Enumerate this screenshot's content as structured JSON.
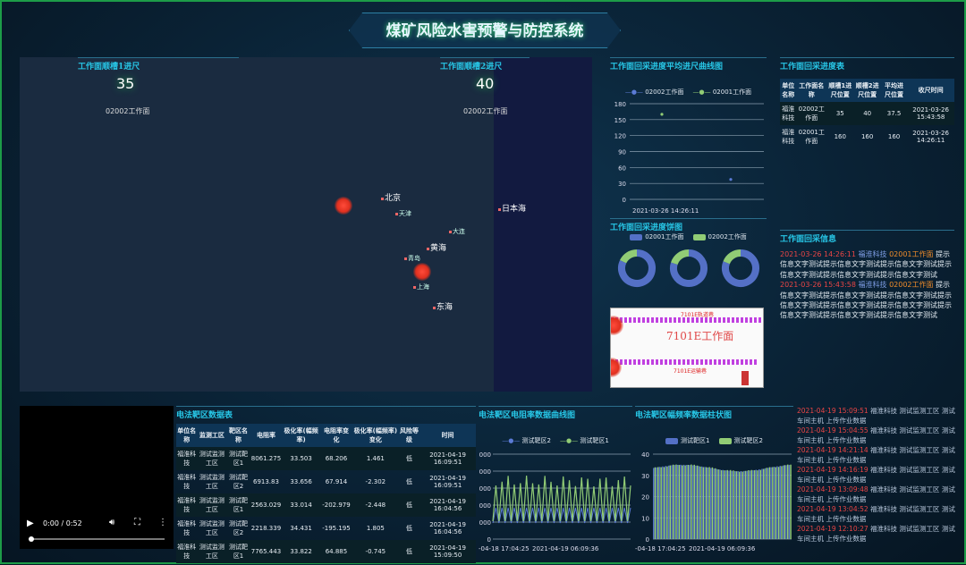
{
  "title": "煤矿风险水害预警与防控系统",
  "map": {
    "slot1_label": "工作面顺槽1进尺",
    "slot1_value": "35",
    "slot1_face": "02002工作面",
    "slot2_label": "工作面顺槽2进尺",
    "slot2_value": "40",
    "slot2_face": "02002工作面",
    "places": [
      "北京",
      "天津",
      "日本海",
      "黄海",
      "东海",
      "大连",
      "上海",
      "青岛"
    ]
  },
  "avg_chart": {
    "title": "工作面回采进度平均进尺曲线图",
    "series": [
      "02002工作面",
      "02001工作面"
    ],
    "yticks": [
      "180",
      "150",
      "120",
      "90",
      "60",
      "30",
      "0"
    ],
    "xlabel": "2021-03-26 14:26:11",
    "chart_data": {
      "type": "scatter",
      "ylim": [
        0,
        180
      ],
      "series": [
        {
          "name": "02002工作面",
          "values": [
            37.5
          ]
        },
        {
          "name": "02001工作面",
          "values": [
            160
          ]
        }
      ]
    }
  },
  "pie": {
    "title": "工作面回采进度饼图",
    "legend": [
      "02001工作面",
      "02002工作面"
    ],
    "chart_data": {
      "type": "pie",
      "colors": [
        "#5470c6",
        "#91cc75"
      ],
      "rings": [
        [
          160,
          35
        ],
        [
          160,
          40
        ],
        [
          160,
          37.5
        ]
      ]
    }
  },
  "drawing": {
    "face": "7101E工作面",
    "top": "7101E轨道巷",
    "bottom": "7101E运输巷"
  },
  "progress_table": {
    "title": "工作面回采进度表",
    "headers": [
      "单位名称",
      "工作面名称",
      "顺槽1进尺位置",
      "顺槽2进尺位置",
      "平均进尺位置",
      "收尺时间"
    ],
    "rows": [
      [
        "福淮科技",
        "02002工作面",
        "35",
        "40",
        "37.5",
        "2021-03-26 15:43:58"
      ],
      [
        "福淮科技",
        "02001工作面",
        "160",
        "160",
        "160",
        "2021-03-26 14:26:11"
      ]
    ]
  },
  "info": {
    "title": "工作面回采信息",
    "items": [
      {
        "time": "2021-03-26 14:26:11",
        "org": "福淮科技",
        "face": "02001工作面",
        "text": "提示信息文字测试提示信息文字测试提示信息文字测试提示信息文字测试提示信息文字测试提示信息文字测试"
      },
      {
        "time": "2021-03-26 15:43:58",
        "org": "福淮科技",
        "face": "02002工作面",
        "text": "提示信息文字测试提示信息文字测试提示信息文字测试提示信息文字测试提示信息文字测试提示信息文字测试提示信息文字测试提示信息文字测试提示信息文字测试"
      }
    ]
  },
  "video": {
    "time": "0:00 / 0:52"
  },
  "data_table": {
    "title": "电法靶区数据表",
    "headers": [
      "单位名称",
      "监测工区",
      "靶区名称",
      "电阻率",
      "极化率(幅频率)",
      "电阻率变化",
      "极化率(幅频率)变化",
      "风险等级",
      "时间"
    ],
    "rows": [
      [
        "福淮科技",
        "测试监测工区",
        "测试靶区1",
        "8061.275",
        "33.503",
        "68.206",
        "1.461",
        "低",
        "2021-04-19 16:09:51"
      ],
      [
        "福淮科技",
        "测试监测工区",
        "测试靶区2",
        "6913.83",
        "33.656",
        "67.914",
        "-2.302",
        "低",
        "2021-04-19 16:09:51"
      ],
      [
        "福淮科技",
        "测试监测工区",
        "测试靶区1",
        "2563.029",
        "33.014",
        "-202.979",
        "-2.448",
        "低",
        "2021-04-19 16:04:56"
      ],
      [
        "福淮科技",
        "测试监测工区",
        "测试靶区2",
        "2218.339",
        "34.431",
        "-195.195",
        "1.805",
        "低",
        "2021-04-19 16:04:56"
      ],
      [
        "福淮科技",
        "测试监测工区",
        "测试靶区1",
        "7765.443",
        "33.822",
        "64.885",
        "-0.745",
        "低",
        "2021-04-19 15:09:50"
      ]
    ]
  },
  "res_chart": {
    "title": "电法靶区电阻率数据曲线图",
    "legend": [
      "测试靶区2",
      "测试靶区1"
    ],
    "yticks": [
      ",000",
      ",000",
      ",000",
      ",000",
      ",000",
      "0"
    ],
    "xticks": [
      "-04-18 17:04:25",
      "2021-04-19 06:09:36"
    ]
  },
  "bar_chart": {
    "title": "电法靶区幅频率数据柱状图",
    "legend": [
      "测试靶区1",
      "测试靶区2"
    ],
    "yticks": [
      "40",
      "30",
      "20",
      "10",
      "0"
    ],
    "xticks": [
      "-04-18 17:04:25",
      "2021-04-19 06:09:36"
    ],
    "chart_data": {
      "type": "bar",
      "ylim": [
        0,
        40
      ],
      "approx_range": [
        33,
        36
      ]
    }
  },
  "logs": [
    {
      "time": "2021-04-19 15:09:51",
      "text": "福淮科技 测试监测工区 测试车间主机 上传作业数据"
    },
    {
      "time": "2021-04-19 15:04:55",
      "text": "福淮科技 测试监测工区 测试车间主机 上传作业数据"
    },
    {
      "time": "2021-04-19 14:21:14",
      "text": "福淮科技 测试监测工区 测试车间主机 上传作业数据"
    },
    {
      "time": "2021-04-19 14:16:19",
      "text": "福淮科技 测试监测工区 测试车间主机 上传作业数据"
    },
    {
      "time": "2021-04-19 13:09:48",
      "text": "福淮科技 测试监测工区 测试车间主机 上传作业数据"
    },
    {
      "time": "2021-04-19 13:04:52",
      "text": "福淮科技 测试监测工区 测试车间主机 上传作业数据"
    },
    {
      "time": "2021-04-19 12:10:27",
      "text": "福淮科技 测试监测工区 测试车间主机 上传作业数据"
    }
  ]
}
